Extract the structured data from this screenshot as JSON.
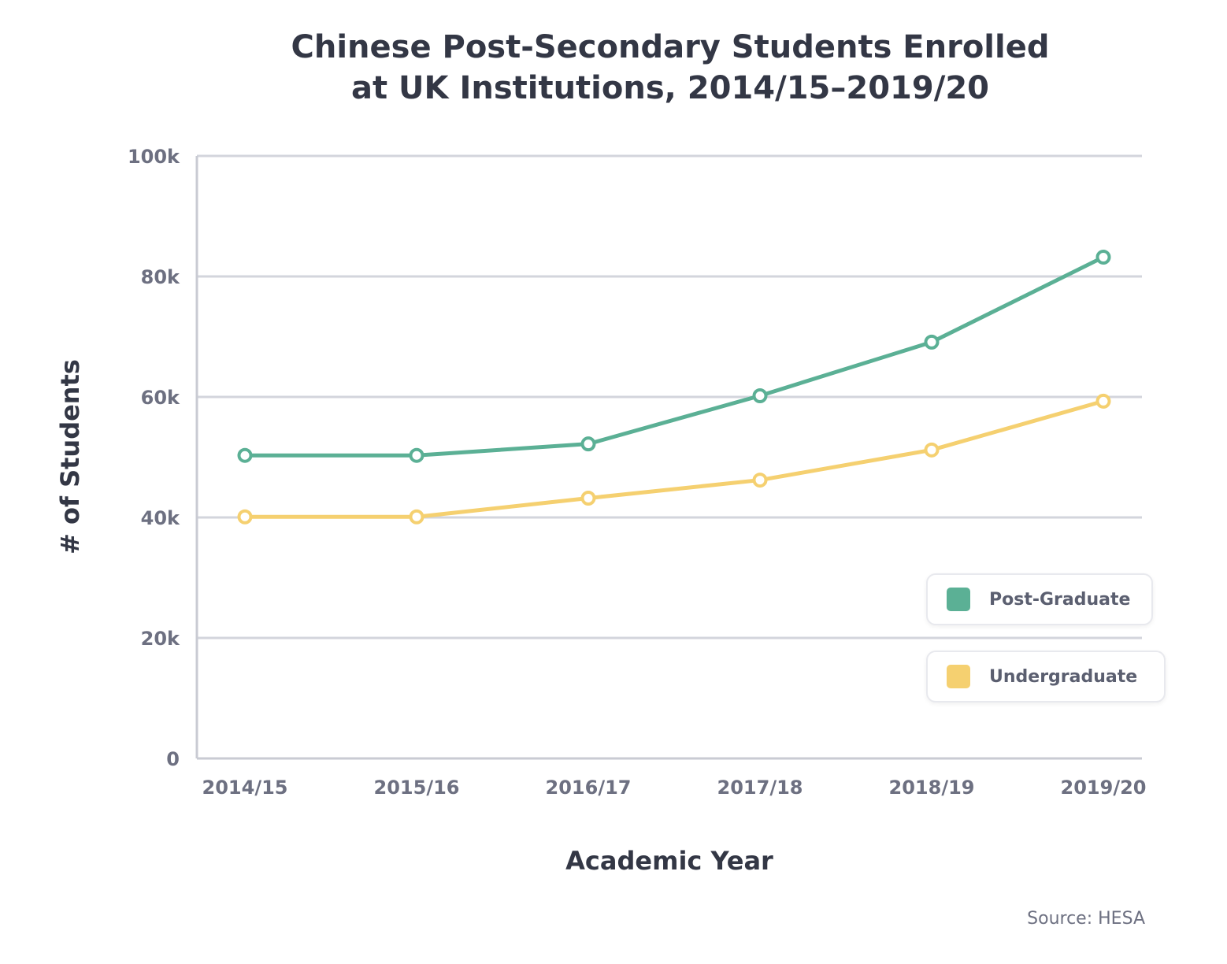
{
  "chart_data": {
    "type": "line",
    "title_lines": [
      "Chinese Post-Secondary Students Enrolled",
      "at UK Institutions, 2014/15–2019/20"
    ],
    "xlabel": "Academic Year",
    "ylabel": "# of Students",
    "categories": [
      "2014/15",
      "2015/16",
      "2016/17",
      "2017/18",
      "2018/19",
      "2019/20"
    ],
    "ylim": [
      0,
      100000
    ],
    "yticks": [
      0,
      20000,
      40000,
      60000,
      80000,
      100000
    ],
    "ytick_labels": [
      "0",
      "20k",
      "40k",
      "60k",
      "80k",
      "100k"
    ],
    "grid": true,
    "legend_position": "bottom-right",
    "series": [
      {
        "name": "Post-Graduate",
        "color": "#5bb095",
        "values": [
          50300,
          50300,
          52200,
          60200,
          69100,
          83200
        ]
      },
      {
        "name": "Undergraduate",
        "color": "#f5d070",
        "values": [
          40100,
          40100,
          43200,
          46200,
          51200,
          59300
        ]
      }
    ],
    "source": "Source: HESA"
  }
}
